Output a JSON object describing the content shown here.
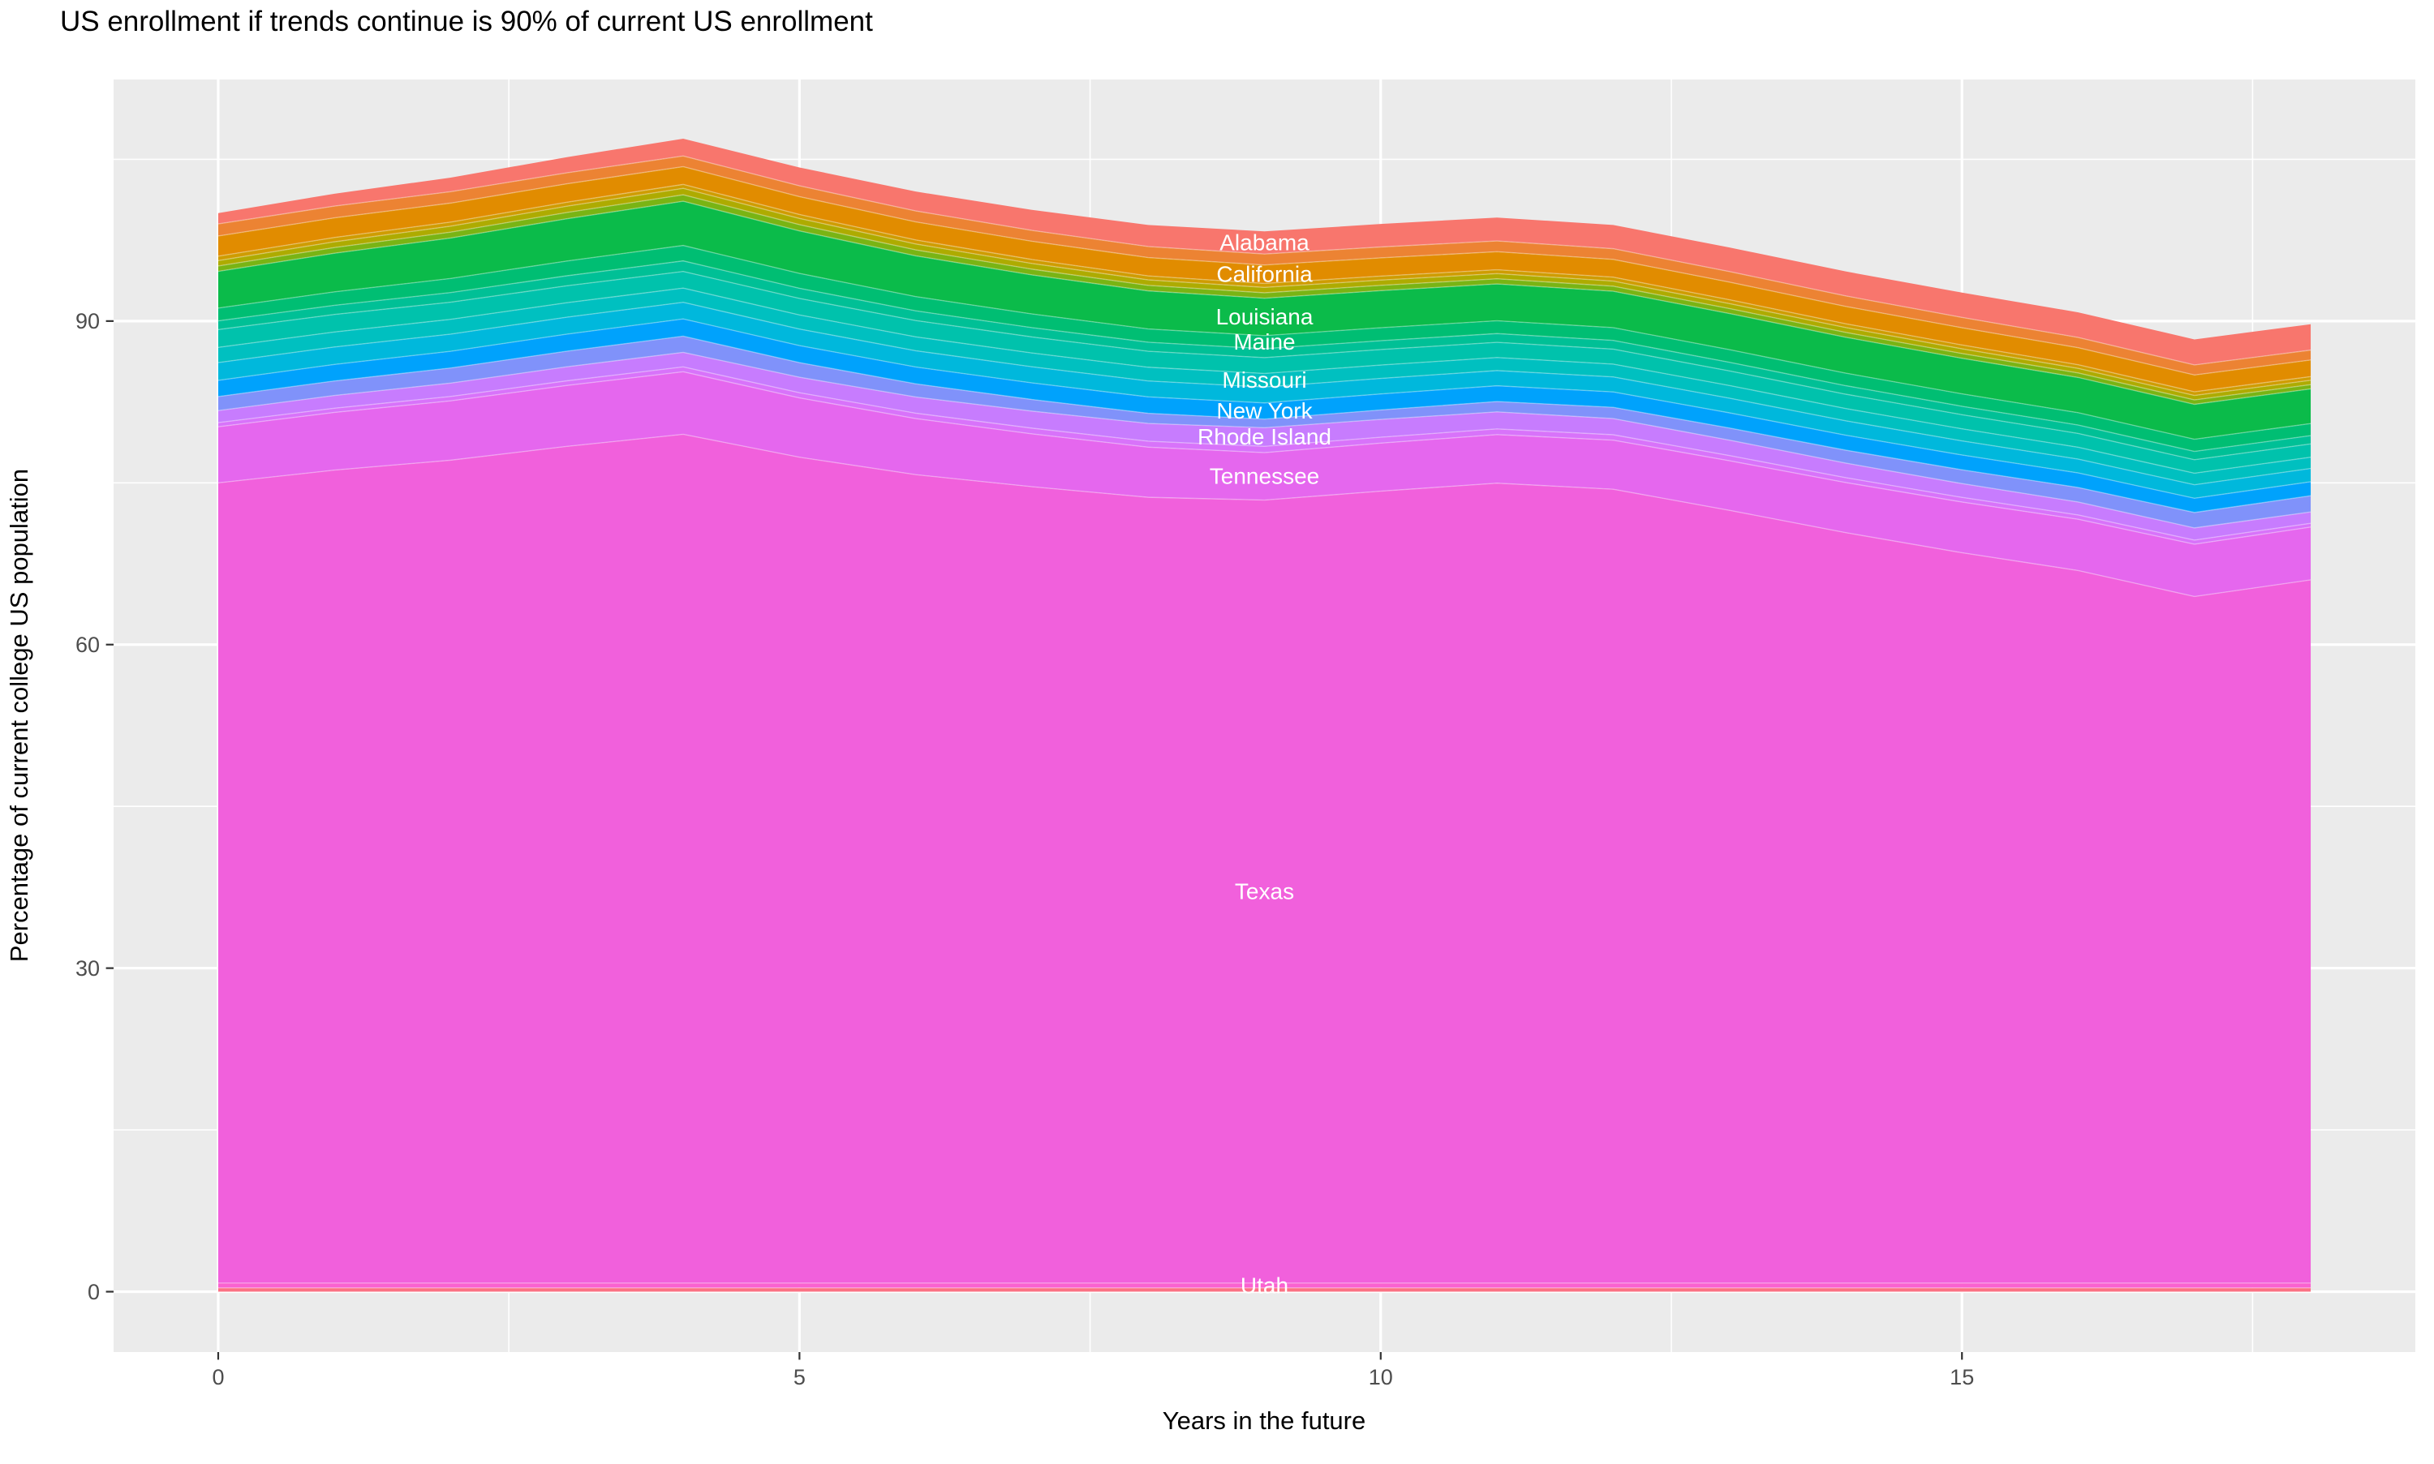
{
  "title": "US enrollment if trends continue is 90% of current US enrollment",
  "axes": {
    "x_label": "Years in the future",
    "y_label": "Percentage of current college US population",
    "x_ticks": [
      0,
      5,
      10,
      15
    ],
    "x_minor": [
      2.5,
      7.5,
      12.5,
      17.5
    ],
    "y_ticks": [
      0,
      30,
      60,
      90
    ],
    "y_minor": [
      15,
      45,
      75,
      105
    ]
  },
  "colors": {
    "panel_bg": "#EBEBEB",
    "grid": "#FFFFFF",
    "tick_text": "#4D4D4D",
    "title_text": "#000000",
    "band_label_text": "#FFFFFF"
  },
  "chart_data": {
    "type": "area",
    "stacked": true,
    "title": "US enrollment if trends continue is 90% of current US enrollment",
    "xlabel": "Years in the future",
    "ylabel": "Percentage of current college US population",
    "x": [
      0,
      1,
      2,
      3,
      4,
      5,
      6,
      7,
      8,
      9,
      10,
      11,
      12,
      13,
      14,
      15,
      16,
      17,
      18
    ],
    "x_range": [
      -0.9,
      18.9
    ],
    "y_range": [
      -5.6,
      112.4
    ],
    "grid": true,
    "legend": "none",
    "label_x": 9,
    "total_percent": [
      100.0,
      101.8,
      103.3,
      105.2,
      106.9,
      104.2,
      102.0,
      100.3,
      98.9,
      98.3,
      99.0,
      99.6,
      98.9,
      96.8,
      94.6,
      92.6,
      90.8,
      88.3,
      89.7
    ],
    "series": [
      {
        "name": "other-vt-wy",
        "label": null,
        "color": "#FB7183",
        "values": [
          0.35,
          0.35,
          0.35,
          0.35,
          0.35,
          0.35,
          0.35,
          0.35,
          0.35,
          0.35,
          0.35,
          0.35,
          0.35,
          0.35,
          0.35,
          0.35,
          0.35,
          0.35,
          0.35
        ]
      },
      {
        "name": "utah",
        "label": "Utah",
        "color": "#FA62D0",
        "values": [
          0.45,
          0.45,
          0.45,
          0.45,
          0.45,
          0.45,
          0.45,
          0.45,
          0.45,
          0.45,
          0.45,
          0.45,
          0.45,
          0.45,
          0.45,
          0.45,
          0.45,
          0.45,
          0.45
        ]
      },
      {
        "name": "texas",
        "label": "Texas",
        "color": "#F160DC",
        "values": [
          74.2,
          75.38,
          76.3,
          77.58,
          78.7,
          76.58,
          74.96,
          73.84,
          72.86,
          72.6,
          73.43,
          74.17,
          73.61,
          71.65,
          69.58,
          67.72,
          66.07,
          63.66,
          65.2
        ]
      },
      {
        "name": "tennessee",
        "label": "Tennessee",
        "color": "#E567EE",
        "values": [
          5.2,
          5.35,
          5.5,
          5.65,
          5.8,
          5.5,
          5.2,
          4.9,
          4.65,
          4.4,
          4.45,
          4.5,
          4.55,
          4.6,
          4.65,
          4.7,
          4.75,
          4.85,
          4.9
        ]
      },
      {
        "name": "other-sc-sd",
        "label": null,
        "color": "#D873FA",
        "values": [
          0.38,
          0.39,
          0.41,
          0.43,
          0.45,
          0.48,
          0.5,
          0.53,
          0.55,
          0.58,
          0.55,
          0.53,
          0.5,
          0.48,
          0.45,
          0.43,
          0.4,
          0.38,
          0.35
        ]
      },
      {
        "name": "rhode-island",
        "label": "Rhode Island",
        "color": "#C77CFE",
        "values": [
          1.12,
          1.18,
          1.24,
          1.3,
          1.35,
          1.43,
          1.5,
          1.58,
          1.65,
          1.73,
          1.65,
          1.58,
          1.5,
          1.43,
          1.35,
          1.28,
          1.2,
          1.13,
          1.05
        ]
      },
      {
        "name": "other-nc-pa",
        "label": null,
        "color": "#8092FA",
        "values": [
          1.3,
          1.35,
          1.4,
          1.45,
          1.5,
          1.36,
          1.22,
          1.08,
          0.94,
          0.8,
          0.88,
          0.96,
          1.04,
          1.12,
          1.2,
          1.28,
          1.35,
          1.43,
          1.5
        ]
      },
      {
        "name": "new-york",
        "label": "New York",
        "color": "#00A2FC",
        "values": [
          1.5,
          1.53,
          1.55,
          1.58,
          1.6,
          1.58,
          1.56,
          1.54,
          1.52,
          1.5,
          1.48,
          1.46,
          1.43,
          1.41,
          1.39,
          1.37,
          1.35,
          1.32,
          1.3
        ]
      },
      {
        "name": "other-nh-nv",
        "label": null,
        "color": "#00B8DC",
        "values": [
          1.65,
          1.62,
          1.59,
          1.57,
          1.54,
          1.53,
          1.51,
          1.49,
          1.48,
          1.47,
          1.44,
          1.41,
          1.39,
          1.36,
          1.33,
          1.31,
          1.28,
          1.25,
          1.23
        ]
      },
      {
        "name": "missouri",
        "label": "Missouri",
        "color": "#00C0C0",
        "values": [
          1.41,
          1.39,
          1.37,
          1.34,
          1.32,
          1.31,
          1.29,
          1.28,
          1.27,
          1.26,
          1.24,
          1.21,
          1.19,
          1.17,
          1.14,
          1.12,
          1.1,
          1.07,
          1.05
        ]
      },
      {
        "name": "other-mn-ms",
        "label": null,
        "color": "#00C2AC",
        "values": [
          1.65,
          1.62,
          1.59,
          1.57,
          1.54,
          1.53,
          1.51,
          1.49,
          1.48,
          1.47,
          1.44,
          1.41,
          1.39,
          1.36,
          1.33,
          1.31,
          1.28,
          1.25,
          1.23
        ]
      },
      {
        "name": "other-md-mi",
        "label": null,
        "color": "#00C096",
        "values": [
          0.81,
          0.85,
          0.89,
          0.93,
          0.98,
          0.94,
          0.9,
          0.86,
          0.84,
          0.83,
          0.82,
          0.81,
          0.81,
          0.8,
          0.79,
          0.78,
          0.78,
          0.77,
          0.77
        ]
      },
      {
        "name": "maine",
        "label": "Maine",
        "color": "#00BE73",
        "values": [
          1.19,
          1.25,
          1.31,
          1.37,
          1.43,
          1.38,
          1.32,
          1.27,
          1.23,
          1.21,
          1.2,
          1.19,
          1.18,
          1.17,
          1.16,
          1.15,
          1.14,
          1.13,
          1.12
        ]
      },
      {
        "name": "louisiana",
        "label": "Louisiana",
        "color": "#0BBB4A",
        "values": [
          3.4,
          3.58,
          3.75,
          3.92,
          4.1,
          3.94,
          3.78,
          3.62,
          3.53,
          3.47,
          3.44,
          3.41,
          3.38,
          3.35,
          3.33,
          3.3,
          3.27,
          3.24,
          3.21
        ]
      },
      {
        "name": "other-ga-ky",
        "label": null,
        "color": "#79B414",
        "values": [
          0.5,
          0.53,
          0.55,
          0.58,
          0.6,
          0.58,
          0.55,
          0.53,
          0.51,
          0.5,
          0.49,
          0.48,
          0.47,
          0.46,
          0.45,
          0.44,
          0.42,
          0.41,
          0.4
        ]
      },
      {
        "name": "other-ct-fl",
        "label": null,
        "color": "#AEAB00",
        "values": [
          0.5,
          0.53,
          0.55,
          0.58,
          0.6,
          0.58,
          0.55,
          0.53,
          0.51,
          0.5,
          0.49,
          0.48,
          0.47,
          0.46,
          0.45,
          0.44,
          0.42,
          0.41,
          0.4
        ]
      },
      {
        "name": "other-colorado",
        "label": null,
        "color": "#CF9C00",
        "values": [
          0.41,
          0.4,
          0.38,
          0.37,
          0.36,
          0.36,
          0.37,
          0.37,
          0.37,
          0.37,
          0.37,
          0.36,
          0.36,
          0.36,
          0.35,
          0.35,
          0.34,
          0.34,
          0.34
        ]
      },
      {
        "name": "california",
        "label": "California",
        "color": "#E18C00",
        "values": [
          1.87,
          1.82,
          1.76,
          1.71,
          1.65,
          1.66,
          1.68,
          1.69,
          1.7,
          1.71,
          1.69,
          1.67,
          1.65,
          1.63,
          1.61,
          1.6,
          1.58,
          1.56,
          1.54
        ]
      },
      {
        "name": "other-ak-ar",
        "label": null,
        "color": "#EC8333",
        "values": [
          1.12,
          1.09,
          1.06,
          1.02,
          0.99,
          1.0,
          1.01,
          1.01,
          1.02,
          1.02,
          1.01,
          1.0,
          0.99,
          0.98,
          0.97,
          0.96,
          0.95,
          0.93,
          0.92
        ]
      },
      {
        "name": "alabama",
        "label": "Alabama",
        "color": "#F8766D",
        "values": [
          1.0,
          1.15,
          1.3,
          1.45,
          1.6,
          1.7,
          1.8,
          1.9,
          2.0,
          2.1,
          2.13,
          2.17,
          2.2,
          2.23,
          2.27,
          2.3,
          2.33,
          2.37,
          2.4
        ]
      }
    ]
  }
}
